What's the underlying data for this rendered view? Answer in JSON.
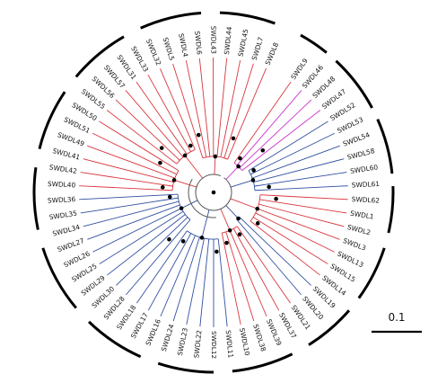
{
  "scale_bar": {
    "label": "0.1"
  },
  "colors": {
    "red": "#d9363e",
    "blue": "#2f4fa0",
    "magenta": "#cc33cc",
    "node": "#000000",
    "arc": "#000000"
  },
  "leaves": [
    {
      "label": "SWDL9",
      "color": "red"
    },
    {
      "label": "SWDL46",
      "color": "magenta"
    },
    {
      "label": "SWDL48",
      "color": "magenta"
    },
    {
      "label": "SWDL47",
      "color": "magenta"
    },
    {
      "label": "SWDL52",
      "color": "blue"
    },
    {
      "label": "SWDL53",
      "color": "blue"
    },
    {
      "label": "SWDL54",
      "color": "blue"
    },
    {
      "label": "SWDL58",
      "color": "blue"
    },
    {
      "label": "SWDL60",
      "color": "blue"
    },
    {
      "label": "SWDL61",
      "color": "blue"
    },
    {
      "label": "SWDL62",
      "color": "red"
    },
    {
      "label": "SWDL1",
      "color": "red"
    },
    {
      "label": "SWDL2",
      "color": "red"
    },
    {
      "label": "SWDL3",
      "color": "red"
    },
    {
      "label": "SWDL13",
      "color": "red"
    },
    {
      "label": "SWDL15",
      "color": "red"
    },
    {
      "label": "SWDL14",
      "color": "red"
    },
    {
      "label": "SWDL19",
      "color": "blue"
    },
    {
      "label": "SWDL20",
      "color": "blue"
    },
    {
      "label": "SWDL21",
      "color": "red"
    },
    {
      "label": "SWDL37",
      "color": "red"
    },
    {
      "label": "SWDL39",
      "color": "red"
    },
    {
      "label": "SWDL38",
      "color": "red"
    },
    {
      "label": "SWDL10",
      "color": "red"
    },
    {
      "label": "SWDL11",
      "color": "blue"
    },
    {
      "label": "SWDL12",
      "color": "blue"
    },
    {
      "label": "SWDL22",
      "color": "blue"
    },
    {
      "label": "SWDL23",
      "color": "blue"
    },
    {
      "label": "SWDL24",
      "color": "blue"
    },
    {
      "label": "SWDL16",
      "color": "blue"
    },
    {
      "label": "SWDL17",
      "color": "blue"
    },
    {
      "label": "SWDL18",
      "color": "blue"
    },
    {
      "label": "SWDL28",
      "color": "blue"
    },
    {
      "label": "SWDL30",
      "color": "blue"
    },
    {
      "label": "SWDL29",
      "color": "blue"
    },
    {
      "label": "SWDL25",
      "color": "blue"
    },
    {
      "label": "SWDL26",
      "color": "blue"
    },
    {
      "label": "SWDL27",
      "color": "blue"
    },
    {
      "label": "SWDL34",
      "color": "blue"
    },
    {
      "label": "SWDL35",
      "color": "blue"
    },
    {
      "label": "SWDL36",
      "color": "blue"
    },
    {
      "label": "SWDL40",
      "color": "red"
    },
    {
      "label": "SWDL42",
      "color": "red"
    },
    {
      "label": "SWDL41",
      "color": "red"
    },
    {
      "label": "SWDL49",
      "color": "red"
    },
    {
      "label": "SWDL51",
      "color": "red"
    },
    {
      "label": "SWDL50",
      "color": "red"
    },
    {
      "label": "SWDL55",
      "color": "red"
    },
    {
      "label": "SWDL56",
      "color": "red"
    },
    {
      "label": "SWDL57",
      "color": "red"
    },
    {
      "label": "SWDL31",
      "color": "red"
    },
    {
      "label": "SWDL33",
      "color": "red"
    },
    {
      "label": "SWDL32",
      "color": "red"
    },
    {
      "label": "SWDL5",
      "color": "red"
    },
    {
      "label": "SWDL4",
      "color": "red"
    },
    {
      "label": "SWDL6",
      "color": "red"
    },
    {
      "label": "SWDL43",
      "color": "red"
    },
    {
      "label": "SWDL44",
      "color": "red"
    },
    {
      "label": "SWDL45",
      "color": "red"
    },
    {
      "label": "SWDL7",
      "color": "red"
    },
    {
      "label": "SWDL8",
      "color": "red"
    }
  ]
}
